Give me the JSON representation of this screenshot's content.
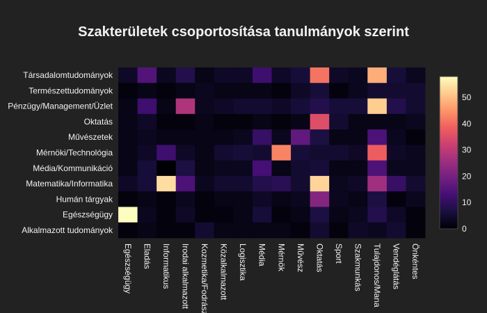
{
  "chart_data": {
    "type": "heatmap",
    "title": "Szakterületek csoportosítása tanulmányok szerint",
    "y_categories": [
      "Társadalomtudományok",
      "Természettudományok",
      "Pénzügy/Management/Üzlet",
      "Oktatás",
      "Művészetek",
      "Mérnöki/Technológia",
      "Média/Kommunikáció",
      "Matematika/Informatika",
      "Humán tárgyak",
      "Egészségügy",
      "Alkalmazott tudományok"
    ],
    "x_categories": [
      "Egészségügy",
      "Eladás",
      "Informatikus",
      "Irodai alkalmazott",
      "Kozmetika/Fodrász",
      "Közalkalmazott",
      "Logisztika",
      "Média",
      "Mérnök",
      "Művész",
      "Oktatás",
      "Sport",
      "Szakmunkás",
      "Tulajdonos/Manager",
      "Vendéglátás",
      "Önkéntes"
    ],
    "x_tick_labels": [
      "Egészségügy",
      "Eladás",
      "Informatikus",
      "Irodai alkalmazott",
      "Kozmetika/Fodrász",
      "Közalkalmazott",
      "Logisztika",
      "Média",
      "Mérnök",
      "Művész",
      "Oktatás",
      "Sport",
      "Szakmunkás",
      "Tulajdonos/Mana",
      "Vendéglátás",
      "Önkéntes"
    ],
    "z": [
      [
        4,
        15,
        3,
        8,
        2,
        4,
        4,
        12,
        4,
        6,
        41,
        4,
        3,
        48,
        6,
        3
      ],
      [
        1,
        2,
        1,
        2,
        3,
        2,
        2,
        2,
        1,
        4,
        6,
        1,
        3,
        5,
        5,
        5
      ],
      [
        2,
        12,
        2,
        28,
        3,
        4,
        5,
        5,
        4,
        6,
        8,
        6,
        6,
        52,
        8,
        5
      ],
      [
        2,
        4,
        1,
        1,
        2,
        1,
        1,
        2,
        1,
        2,
        35,
        5,
        2,
        2,
        2,
        3
      ],
      [
        2,
        3,
        2,
        2,
        2,
        2,
        3,
        11,
        3,
        17,
        7,
        2,
        2,
        14,
        3,
        1
      ],
      [
        2,
        4,
        12,
        4,
        2,
        5,
        6,
        5,
        43,
        6,
        5,
        5,
        4,
        38,
        4,
        3
      ],
      [
        2,
        6,
        0,
        7,
        2,
        3,
        3,
        13,
        2,
        5,
        6,
        2,
        2,
        14,
        3,
        3
      ],
      [
        4,
        6,
        54,
        14,
        3,
        5,
        5,
        8,
        9,
        5,
        53,
        3,
        4,
        26,
        11,
        5
      ],
      [
        1,
        2,
        1,
        3,
        1,
        2,
        2,
        4,
        2,
        3,
        22,
        3,
        2,
        7,
        1,
        3
      ],
      [
        58,
        3,
        1,
        4,
        1,
        1,
        2,
        6,
        1,
        2,
        7,
        2,
        3,
        8,
        4,
        1
      ],
      [
        1,
        2,
        1,
        1,
        5,
        2,
        2,
        2,
        2,
        1,
        5,
        1,
        4,
        3,
        5,
        1
      ]
    ],
    "zmin": 0,
    "zmax": 58,
    "colorscale": "magma",
    "colorbar_ticks": [
      0,
      10,
      20,
      30,
      40,
      50
    ],
    "grid": false
  }
}
